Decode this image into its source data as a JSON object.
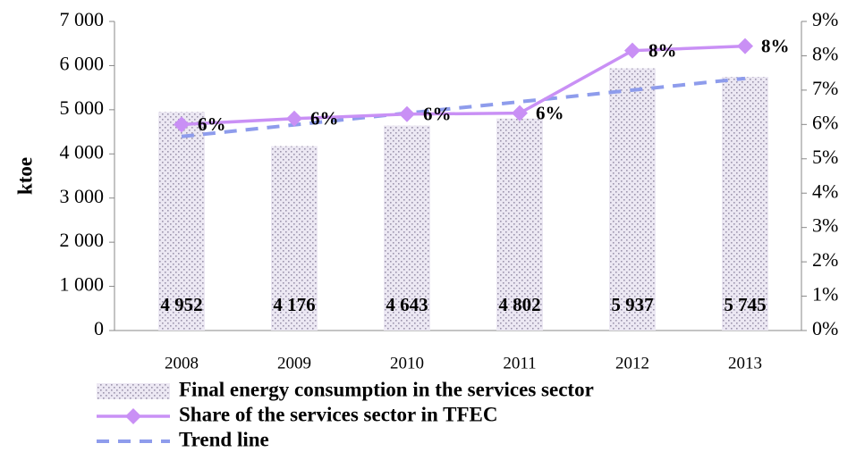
{
  "chart_data": {
    "type": "bar",
    "y_label": "ktoe",
    "categories": [
      "2008",
      "2009",
      "2010",
      "2011",
      "2012",
      "2013"
    ],
    "series": [
      {
        "name": "Final energy consumption in the services sector",
        "type": "bar",
        "color": "#d9d2e9",
        "values": [
          4952,
          4176,
          4643,
          4802,
          5937,
          5745
        ],
        "value_labels": [
          "4 952",
          "4 176",
          "4 643",
          "4 802",
          "5 937",
          "5 745"
        ]
      },
      {
        "name": "Share of the services sector in TFEC",
        "type": "line",
        "axis": "y2",
        "color": "#c990f5",
        "marker": "diamond",
        "values": [
          6.0,
          6.17,
          6.3,
          6.33,
          8.15,
          8.28
        ],
        "value_labels": [
          "6%",
          "6%",
          "6%",
          "6%",
          "8%",
          "8%"
        ]
      },
      {
        "name": "Trend line",
        "type": "line",
        "axis": "y2",
        "color": "#8e9cec",
        "style": "dashed",
        "values": [
          5.65,
          5.99,
          6.33,
          6.66,
          7.0,
          7.34
        ]
      }
    ],
    "ylim": [
      0,
      7000
    ],
    "yticks": [
      0,
      {
        "value": 1000,
        "label": "1 000"
      },
      {
        "value": 2000,
        "label": "2 000"
      },
      {
        "value": 3000,
        "label": "3 000"
      },
      {
        "value": 4000,
        "label": "4 000"
      },
      {
        "value": 5000,
        "label": "5 000"
      },
      {
        "value": 6000,
        "label": "6 000"
      },
      {
        "value": 7000,
        "label": "7 000"
      }
    ],
    "y2lim": [
      0,
      9
    ],
    "y2ticks": [
      {
        "value": 0,
        "label": "0%"
      },
      {
        "value": 1,
        "label": "1%"
      },
      {
        "value": 2,
        "label": "2%"
      },
      {
        "value": 3,
        "label": "3%"
      },
      {
        "value": 4,
        "label": "4%"
      },
      {
        "value": 5,
        "label": "5%"
      },
      {
        "value": 6,
        "label": "6%"
      },
      {
        "value": 7,
        "label": "7%"
      },
      {
        "value": 8,
        "label": "8%"
      },
      {
        "value": 9,
        "label": "9%"
      }
    ],
    "grid": false
  }
}
